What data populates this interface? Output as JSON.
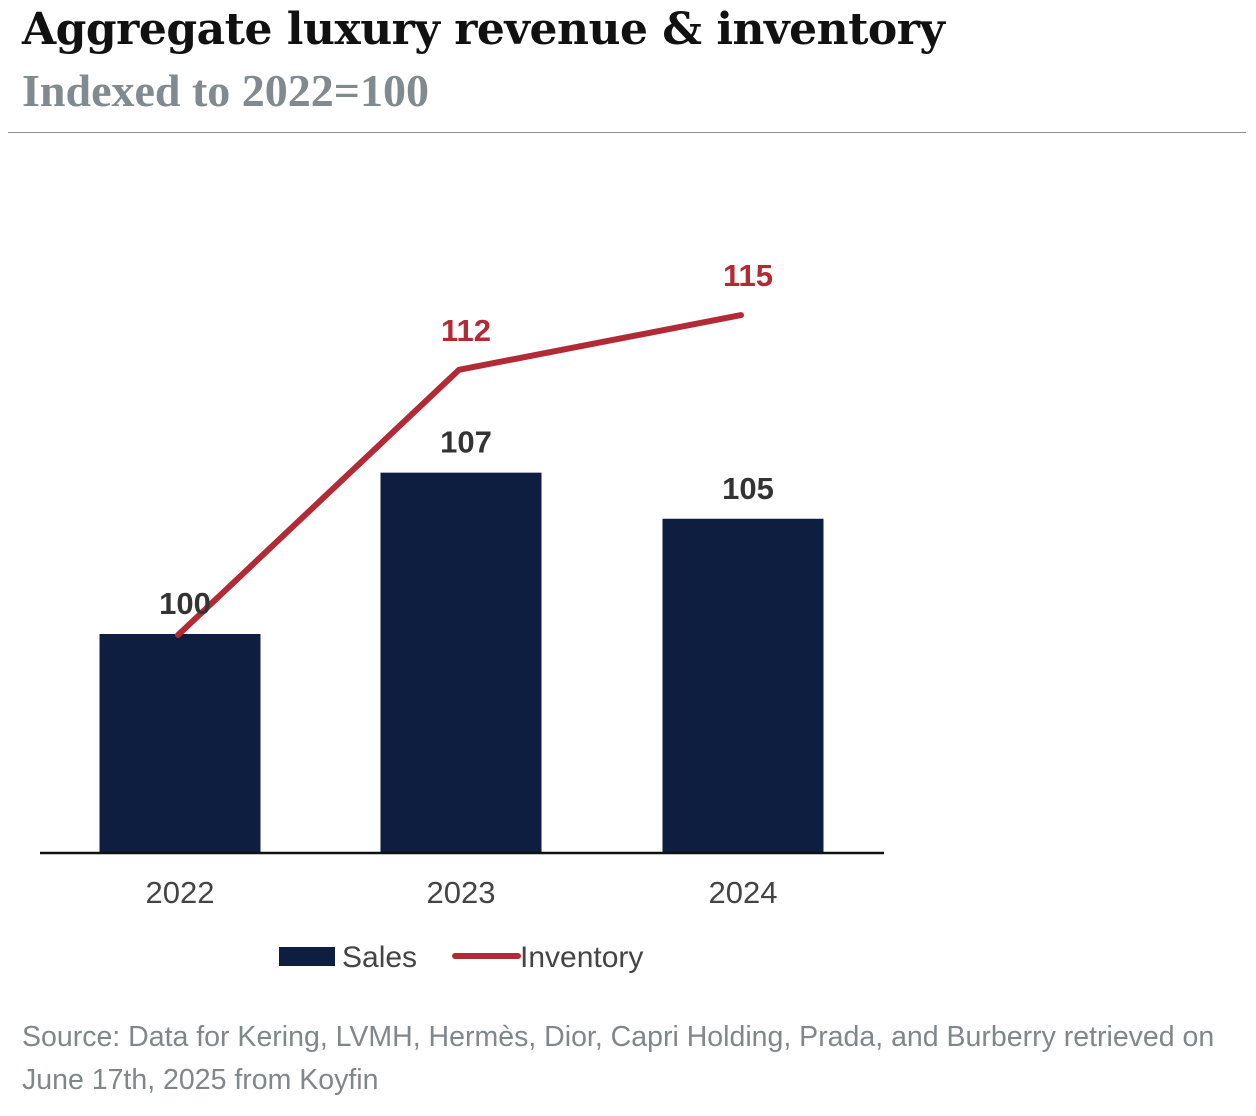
{
  "header": {
    "title": "Aggregate luxury revenue & inventory",
    "subtitle": "Indexed to 2022=100"
  },
  "footer": {
    "source": "Source: Data for Kering, LVMH, Hermès, Dior, Capri Holding, Prada, and Burberry retrieved on June 17th, 2025 from Koyfin"
  },
  "colors": {
    "sales": "#0e1e40",
    "inventory": "#b22a35",
    "axis": "#111111",
    "label_dark": "#333333",
    "tick": "#444444"
  },
  "chart_data": {
    "type": "bar",
    "title": "Aggregate luxury revenue & inventory",
    "subtitle": "Indexed to 2022=100",
    "categories": [
      "2022",
      "2023",
      "2024"
    ],
    "series": [
      {
        "name": "Sales",
        "type": "bar",
        "values": [
          100,
          107,
          105
        ]
      },
      {
        "name": "Inventory",
        "type": "line",
        "values": [
          100,
          112,
          115
        ]
      }
    ],
    "data_labels": {
      "sales": [
        "100",
        "107",
        "105"
      ],
      "inventory": [
        "112",
        "115"
      ]
    },
    "ylim": [
      0,
      135
    ],
    "grid": false,
    "legend": {
      "position": "bottom",
      "entries": [
        "Sales",
        "Inventory"
      ]
    }
  }
}
